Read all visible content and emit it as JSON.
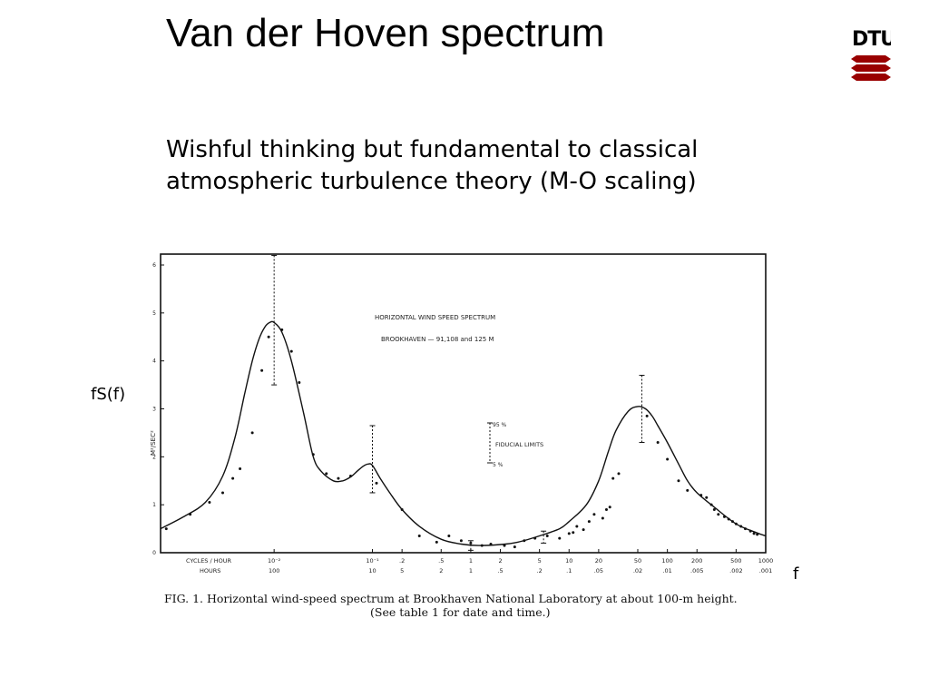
{
  "slide": {
    "title": "Van der Hoven spectrum",
    "subtitle": "Wishful thinking but fundamental to classical atmospheric turbulence theory (M-O scaling)",
    "logo_text": "DTU",
    "y_annotation": "fS(f)",
    "x_annotation": "f"
  },
  "colors": {
    "logo_red": "#990000",
    "logo_grey": "#8a8a8a",
    "ink": "#111111"
  },
  "chart_data": {
    "type": "line",
    "title": "HORIZONTAL WIND SPEED SPECTRUM",
    "subtitle": "BROOKHAVEN — 91,108 and 125 M",
    "ylabel": "M²/SEC²",
    "xscale": "log",
    "xlim": [
      0.0007,
      1000
    ],
    "ylim": [
      0,
      6
    ],
    "yticks": [
      "0",
      "1",
      "2",
      "3",
      "4",
      "5",
      "6"
    ],
    "x_axis_row1_label": "CYCLES / HOUR",
    "x_axis_row2_label": "HOURS",
    "x_ticks": [
      {
        "x": 0.01,
        "cycles": "10⁻²",
        "hours": "100"
      },
      {
        "x": 0.1,
        "cycles": "10⁻¹",
        "hours": "10"
      },
      {
        "x": 0.2,
        "cycles": ".2",
        "hours": "5"
      },
      {
        "x": 0.5,
        "cycles": ".5",
        "hours": "2"
      },
      {
        "x": 1,
        "cycles": "1",
        "hours": "1"
      },
      {
        "x": 2,
        "cycles": "2",
        "hours": ".5"
      },
      {
        "x": 5,
        "cycles": "5",
        "hours": ".2"
      },
      {
        "x": 10,
        "cycles": "10",
        "hours": ".1"
      },
      {
        "x": 20,
        "cycles": "20",
        "hours": ".05"
      },
      {
        "x": 50,
        "cycles": "50",
        "hours": ".02"
      },
      {
        "x": 100,
        "cycles": "100",
        "hours": ".01"
      },
      {
        "x": 200,
        "cycles": "200",
        "hours": ".005"
      },
      {
        "x": 500,
        "cycles": "500",
        "hours": ".002"
      },
      {
        "x": 1000,
        "cycles": "1000",
        "hours": ".001"
      }
    ],
    "curve": {
      "x": [
        0.0007,
        0.0012,
        0.002,
        0.003,
        0.004,
        0.005,
        0.006,
        0.007,
        0.008,
        0.009,
        0.01,
        0.012,
        0.015,
        0.02,
        0.025,
        0.03,
        0.04,
        0.05,
        0.06,
        0.07,
        0.08,
        0.09,
        0.1,
        0.12,
        0.15,
        0.2,
        0.3,
        0.5,
        0.8,
        1.2,
        2,
        3,
        5,
        8,
        10,
        15,
        20,
        25,
        30,
        40,
        50,
        60,
        70,
        80,
        100,
        130,
        160,
        200,
        300,
        500,
        800,
        1000
      ],
      "y": [
        0.5,
        0.75,
        1.05,
        1.6,
        2.4,
        3.3,
        4.0,
        4.45,
        4.7,
        4.8,
        4.8,
        4.6,
        4.0,
        2.9,
        2.0,
        1.7,
        1.5,
        1.5,
        1.58,
        1.7,
        1.8,
        1.85,
        1.82,
        1.55,
        1.25,
        0.9,
        0.55,
        0.28,
        0.18,
        0.15,
        0.17,
        0.22,
        0.35,
        0.5,
        0.65,
        1.0,
        1.5,
        2.1,
        2.55,
        2.95,
        3.05,
        3.0,
        2.85,
        2.65,
        2.3,
        1.85,
        1.5,
        1.25,
        0.95,
        0.6,
        0.42,
        0.35
      ]
    },
    "points": {
      "x": [
        0.0008,
        0.0014,
        0.0022,
        0.003,
        0.0038,
        0.0045,
        0.006,
        0.0075,
        0.0088,
        0.012,
        0.015,
        0.018,
        0.025,
        0.034,
        0.045,
        0.06,
        0.11,
        0.2,
        0.3,
        0.45,
        0.6,
        0.8,
        1.0,
        1.3,
        1.6,
        2.2,
        2.8,
        3.5,
        4.5,
        6,
        8,
        10,
        11,
        12,
        14,
        16,
        18,
        22,
        24,
        26,
        28,
        32,
        62,
        80,
        100,
        130,
        160,
        220,
        250,
        280,
        300,
        330,
        380,
        420,
        460,
        500,
        560,
        620,
        700,
        760,
        820
      ],
      "y": [
        0.5,
        0.8,
        1.05,
        1.25,
        1.55,
        1.75,
        2.5,
        3.8,
        4.5,
        4.65,
        4.2,
        3.55,
        2.05,
        1.65,
        1.55,
        1.6,
        1.45,
        0.9,
        0.35,
        0.22,
        0.35,
        0.25,
        0.2,
        0.15,
        0.18,
        0.15,
        0.12,
        0.25,
        0.3,
        0.35,
        0.3,
        0.4,
        0.42,
        0.55,
        0.48,
        0.65,
        0.8,
        0.72,
        0.9,
        0.95,
        1.55,
        1.65,
        2.85,
        2.3,
        1.95,
        1.5,
        1.3,
        1.2,
        1.15,
        1.0,
        0.9,
        0.8,
        0.75,
        0.7,
        0.65,
        0.6,
        0.55,
        0.5,
        0.45,
        0.4,
        0.38
      ]
    },
    "error_bars": [
      {
        "x": 0.01,
        "low": 3.5,
        "high": 6.2
      },
      {
        "x": 0.1,
        "low": 1.25,
        "high": 2.65
      },
      {
        "x": 1.0,
        "low": 0.05,
        "high": 0.25
      },
      {
        "x": 5.5,
        "low": 0.2,
        "high": 0.45
      },
      {
        "x": 55,
        "low": 2.3,
        "high": 3.7
      }
    ],
    "fiducial_key": {
      "upper_label": "95 %",
      "lower_label": "5 %",
      "text": "FIDUCIAL LIMITS"
    },
    "caption_line1": "FIG. 1. Horizontal wind-speed spectrum at Brookhaven National Laboratory at about 100-m height.",
    "caption_line2": "(See table 1 for date and time.)"
  }
}
